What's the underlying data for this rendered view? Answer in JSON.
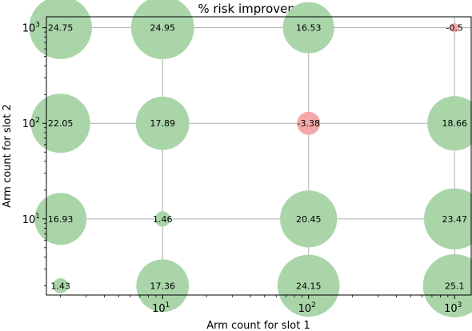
{
  "chart_data": {
    "type": "scatter",
    "title": "% risk improvement",
    "xlabel": "Arm count for slot 1",
    "ylabel": "Arm count for slot 2",
    "x_scale": "log",
    "y_scale": "log",
    "xlim": [
      1.6,
      1300
    ],
    "ylim": [
      1.6,
      1300
    ],
    "grid": true,
    "x_ticks": [
      {
        "base": "10",
        "exp": "1",
        "value": 10
      },
      {
        "base": "10",
        "exp": "2",
        "value": 100
      },
      {
        "base": "10",
        "exp": "3",
        "value": 1000
      }
    ],
    "y_ticks": [
      {
        "base": "10",
        "exp": "1",
        "value": 10
      },
      {
        "base": "10",
        "exp": "2",
        "value": 100
      },
      {
        "base": "10",
        "exp": "3",
        "value": 1000
      }
    ],
    "positive_color": "#a9d5a9",
    "negative_color": "#f4a8a8",
    "points": [
      {
        "x": 2,
        "y": 2,
        "value": 1.43,
        "label": "1.43"
      },
      {
        "x": 10,
        "y": 2,
        "value": 17.36,
        "label": "17.36"
      },
      {
        "x": 100,
        "y": 2,
        "value": 24.15,
        "label": "24.15"
      },
      {
        "x": 1000,
        "y": 2,
        "value": 25.1,
        "label": "25.1"
      },
      {
        "x": 2,
        "y": 10,
        "value": 16.93,
        "label": "16.93"
      },
      {
        "x": 10,
        "y": 10,
        "value": 1.46,
        "label": "1.46"
      },
      {
        "x": 100,
        "y": 10,
        "value": 20.45,
        "label": "20.45"
      },
      {
        "x": 1000,
        "y": 10,
        "value": 23.47,
        "label": "23.47"
      },
      {
        "x": 2,
        "y": 100,
        "value": 22.05,
        "label": "22.05"
      },
      {
        "x": 10,
        "y": 100,
        "value": 17.89,
        "label": "17.89"
      },
      {
        "x": 100,
        "y": 100,
        "value": -3.38,
        "label": "-3.38"
      },
      {
        "x": 1000,
        "y": 100,
        "value": 18.66,
        "label": "18.66"
      },
      {
        "x": 2,
        "y": 1000,
        "value": 24.75,
        "label": "24.75"
      },
      {
        "x": 10,
        "y": 1000,
        "value": 24.95,
        "label": "24.95"
      },
      {
        "x": 100,
        "y": 1000,
        "value": 16.53,
        "label": "16.53"
      },
      {
        "x": 1000,
        "y": 1000,
        "value": -0.5,
        "label": "-0.5"
      }
    ]
  }
}
